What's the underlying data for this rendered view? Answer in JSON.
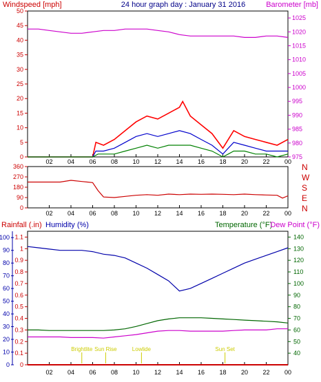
{
  "header": {
    "title": "24 hour graph day : January 31 2016",
    "left_label": "Windspeed [mph]",
    "right_label": "Barometer [mb]"
  },
  "colors": {
    "wind": "#ff0000",
    "gust_avg": "#0000cc",
    "wind_low": "#008000",
    "baro": "#cc00cc",
    "humidity": "#0000aa",
    "temp": "#006600",
    "dew": "#cc00cc",
    "rain": "#cc0000",
    "sun": "#cccc00"
  },
  "chart_data": [
    {
      "type": "line",
      "title": "24 hour graph day : January 31 2016",
      "ylabel": "Windspeed [mph]",
      "ylabel_right": "Barometer [mb]",
      "x_ticks": [
        "02",
        "04",
        "06",
        "08",
        "10",
        "12",
        "14",
        "16",
        "18",
        "20",
        "22",
        "00"
      ],
      "ylim": [
        0,
        50
      ],
      "y_ticks": [
        0,
        5,
        10,
        15,
        20,
        25,
        30,
        35,
        40,
        45,
        50
      ],
      "ylim_right": [
        975,
        1027.5
      ],
      "y_ticks_right": [
        975,
        980,
        985,
        990,
        995,
        1000,
        1005,
        1010,
        1015,
        1020,
        1025
      ],
      "series": [
        {
          "color": "#cc00cc",
          "axis": "right",
          "x": [
            0,
            1,
            2,
            3,
            4,
            5,
            6,
            7,
            8,
            9,
            10,
            11,
            12,
            13,
            14,
            15,
            16,
            17,
            18,
            19,
            20,
            21,
            22,
            23,
            24
          ],
          "values": [
            1021,
            1021,
            1020.5,
            1020,
            1019.5,
            1019.5,
            1020,
            1020.5,
            1020.5,
            1021,
            1021,
            1021,
            1020.5,
            1020,
            1019,
            1018.5,
            1018.5,
            1018.5,
            1018.5,
            1018.5,
            1018,
            1018,
            1018.5,
            1018.5,
            1018
          ]
        },
        {
          "color": "#ff0000",
          "axis": "left",
          "x": [
            0,
            6,
            6.3,
            7,
            8,
            9,
            10,
            11,
            12,
            13,
            14,
            14.3,
            15,
            16,
            17,
            18,
            18.5,
            19,
            20,
            21,
            22,
            23,
            24
          ],
          "values": [
            0,
            0,
            5,
            4,
            6,
            9,
            12,
            14,
            13,
            15,
            17,
            19,
            14,
            11,
            8,
            3,
            6,
            9,
            7,
            6,
            5,
            4,
            6
          ]
        },
        {
          "color": "#0000cc",
          "axis": "left",
          "x": [
            0,
            6,
            6.3,
            7,
            8,
            9,
            10,
            11,
            12,
            13,
            14,
            15,
            16,
            17,
            18,
            18.5,
            19,
            20,
            21,
            22,
            23,
            24
          ],
          "values": [
            0,
            0,
            2,
            2,
            3,
            5,
            7,
            8,
            7,
            8,
            9,
            8,
            6,
            4,
            1,
            3,
            5,
            4,
            3,
            2,
            2,
            2
          ]
        },
        {
          "color": "#008000",
          "axis": "left",
          "x": [
            0,
            6,
            6.5,
            7,
            8,
            9,
            10,
            11,
            12,
            13,
            14,
            15,
            16,
            17,
            18,
            18.5,
            19,
            20,
            21,
            22,
            23,
            24
          ],
          "values": [
            0,
            0,
            1,
            1,
            1,
            2,
            3,
            4,
            3,
            4,
            4,
            4,
            3,
            2,
            0,
            1,
            2,
            2,
            1,
            1,
            0,
            1
          ]
        }
      ]
    },
    {
      "type": "line",
      "ylabel_right": "N W S E N",
      "x_ticks": [
        "02",
        "04",
        "06",
        "08",
        "10",
        "12",
        "14",
        "16",
        "18",
        "20",
        "22",
        "00"
      ],
      "ylim": [
        0,
        360
      ],
      "y_ticks": [
        0,
        90,
        180,
        270,
        360
      ],
      "y_tick_labels": [
        "0",
        "90",
        "180",
        "270",
        "360"
      ],
      "compass_labels": [
        "N",
        "W",
        "S",
        "E",
        "N"
      ],
      "series": [
        {
          "color": "#cc0000",
          "x": [
            0,
            3,
            4,
            5,
            6,
            6.5,
            7,
            8,
            9,
            10,
            11,
            12,
            13,
            14,
            15,
            16,
            17,
            18,
            19,
            20,
            21,
            22,
            23,
            23.5,
            24
          ],
          "values": [
            225,
            225,
            240,
            230,
            220,
            150,
            95,
            90,
            100,
            110,
            115,
            110,
            120,
            115,
            120,
            118,
            120,
            118,
            115,
            120,
            115,
            112,
            110,
            85,
            105
          ]
        }
      ]
    },
    {
      "type": "line",
      "ylabel": "Rainfall (.in)",
      "ylabel2": "Humidity (%)",
      "ylabel_right": "Temperature (°F)",
      "ylabel_right2": "Dew Point (°F)",
      "x_ticks": [
        "02",
        "04",
        "06",
        "08",
        "10",
        "12",
        "14",
        "16",
        "18",
        "20",
        "22",
        "00"
      ],
      "ylim_rain": [
        0,
        1.15
      ],
      "y_ticks_rain": [
        0,
        0.1,
        0.2,
        0.3,
        0.4,
        0.5,
        0.6,
        0.7,
        0.8,
        0.9,
        1,
        1.1
      ],
      "y_tick_labels_rain": [
        "0",
        "0.1",
        "0.2",
        "0.3",
        "0.4",
        "0.5",
        "0.6",
        "0.7",
        "0.8",
        "0.9",
        "1",
        "1.1"
      ],
      "ylim_hum": [
        0,
        105
      ],
      "y_ticks_hum": [
        0,
        10,
        20,
        30,
        40,
        50,
        60,
        70,
        80,
        90,
        100
      ],
      "ylim_temp": [
        30,
        145
      ],
      "y_ticks_temp": [
        40,
        50,
        60,
        70,
        80,
        90,
        100,
        110,
        120,
        130,
        140
      ],
      "annotations": [
        {
          "text": "Brightlite",
          "x": 5.0
        },
        {
          "text": "Sun Rise",
          "x": 7.2
        },
        {
          "text": "Lowlide",
          "x": 10.5
        },
        {
          "text": "Sun Set",
          "x": 18.2
        }
      ],
      "series": [
        {
          "color": "#0000aa",
          "axis": "hum",
          "x": [
            0,
            1,
            2,
            3,
            4,
            5,
            6,
            7,
            8,
            9,
            10,
            11,
            12,
            13,
            14,
            15,
            16,
            17,
            18,
            19,
            20,
            21,
            22,
            23,
            24
          ],
          "values": [
            93,
            92,
            91,
            90,
            90,
            90,
            89,
            87,
            86,
            84,
            80,
            76,
            71,
            66,
            58,
            60,
            64,
            68,
            72,
            76,
            80,
            83,
            86,
            89,
            92
          ]
        },
        {
          "color": "#006600",
          "axis": "temp",
          "x": [
            0,
            1,
            2,
            3,
            4,
            5,
            6,
            7,
            8,
            9,
            10,
            11,
            12,
            13,
            14,
            15,
            16,
            17,
            18,
            19,
            20,
            21,
            22,
            23,
            24
          ],
          "values": [
            60,
            60,
            59.5,
            59.5,
            59.5,
            59.5,
            59.5,
            59.5,
            60,
            61,
            63,
            65.5,
            68,
            69.5,
            70.5,
            70.5,
            70.5,
            70,
            69.5,
            69,
            68.5,
            68,
            67.5,
            67,
            66
          ]
        },
        {
          "color": "#cc00cc",
          "axis": "temp",
          "x": [
            0,
            1,
            2,
            3,
            4,
            5,
            6,
            7,
            8,
            9,
            10,
            11,
            12,
            13,
            14,
            15,
            16,
            17,
            18,
            19,
            20,
            21,
            22,
            23,
            24
          ],
          "values": [
            54,
            54,
            54,
            54,
            53.5,
            53.5,
            53.5,
            53,
            54,
            55,
            56,
            57.5,
            59,
            59.5,
            59.5,
            59,
            59,
            59,
            59,
            59.5,
            60,
            60,
            60,
            61,
            61
          ]
        },
        {
          "color": "#cc0000",
          "axis": "rain",
          "x": [
            0,
            24
          ],
          "values": [
            0,
            0
          ]
        }
      ]
    }
  ]
}
